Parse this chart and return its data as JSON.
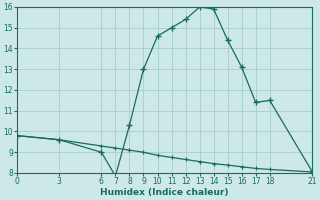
{
  "xlabel": "Humidex (Indice chaleur)",
  "bg_color": "#cce8e8",
  "line_color": "#1a6b5a",
  "grid_color": "#aacccc",
  "xlim": [
    0,
    21
  ],
  "ylim": [
    8,
    16
  ],
  "xticks": [
    0,
    3,
    6,
    7,
    8,
    9,
    10,
    11,
    12,
    13,
    14,
    15,
    16,
    17,
    18,
    21
  ],
  "yticks": [
    8,
    9,
    10,
    11,
    12,
    13,
    14,
    15,
    16
  ],
  "line1_x": [
    0,
    3,
    6,
    7,
    8,
    9,
    10,
    11,
    12,
    13,
    14,
    15,
    16,
    17,
    18,
    21
  ],
  "line1_y": [
    9.8,
    9.6,
    9.0,
    7.85,
    10.3,
    13.0,
    14.6,
    15.0,
    15.4,
    16.0,
    15.9,
    14.4,
    13.1,
    11.4,
    11.5,
    8.1
  ],
  "line2_x": [
    0,
    3,
    6,
    7,
    8,
    9,
    10,
    11,
    12,
    13,
    14,
    15,
    16,
    17,
    18,
    21
  ],
  "line2_y": [
    9.8,
    9.6,
    9.3,
    9.2,
    9.1,
    9.0,
    8.85,
    8.75,
    8.65,
    8.55,
    8.45,
    8.38,
    8.3,
    8.22,
    8.17,
    8.05
  ]
}
